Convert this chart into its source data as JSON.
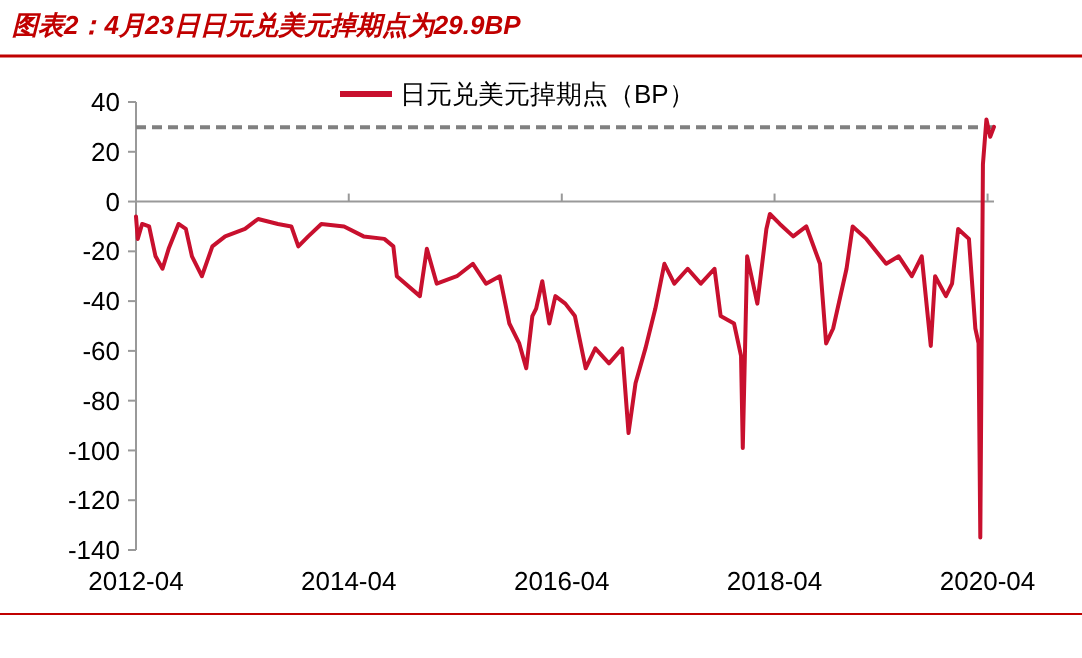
{
  "chart_data": {
    "type": "line",
    "title": "图表2：4月23日日元兑美元掉期点为29.9BP",
    "x": [
      "2012-04-01",
      "2012-04-07",
      "2012-04-22",
      "2012-05-16",
      "2012-06-07",
      "2012-07-01",
      "2012-07-22",
      "2012-08-25",
      "2012-09-19",
      "2012-10-10",
      "2012-11-13",
      "2012-12-19",
      "2013-02-01",
      "2013-04-10",
      "2013-05-25",
      "2013-08-01",
      "2013-09-16",
      "2013-10-10",
      "2013-11-13",
      "2013-12-28",
      "2014-03-16",
      "2014-05-22",
      "2014-08-01",
      "2014-09-01",
      "2014-09-13",
      "2014-12-01",
      "2014-12-25",
      "2015-01-28",
      "2015-04-07",
      "2015-06-01",
      "2015-07-16",
      "2015-09-01",
      "2015-10-04",
      "2015-11-07",
      "2015-12-01",
      "2015-12-22",
      "2016-01-04",
      "2016-01-25",
      "2016-02-18",
      "2016-03-10",
      "2016-04-13",
      "2016-05-16",
      "2016-06-22",
      "2016-07-25",
      "2016-09-10",
      "2016-10-25",
      "2016-11-16",
      "2016-12-10",
      "2017-01-13",
      "2017-02-16",
      "2017-03-19",
      "2017-04-22",
      "2017-06-07",
      "2017-07-22",
      "2017-09-07",
      "2017-09-28",
      "2017-11-13",
      "2017-12-07",
      "2017-12-13",
      "2017-12-28",
      "2018-02-01",
      "2018-03-04",
      "2018-03-16",
      "2018-04-19",
      "2018-06-04",
      "2018-07-19",
      "2018-09-04",
      "2018-09-25",
      "2018-10-19",
      "2018-12-04",
      "2018-12-25",
      "2019-02-10",
      "2019-04-19",
      "2019-06-01",
      "2019-07-16",
      "2019-08-19",
      "2019-09-19",
      "2019-10-04",
      "2019-11-10",
      "2019-12-01",
      "2019-12-22",
      "2020-01-28",
      "2020-02-19",
      "2020-03-01",
      "2020-03-07",
      "2020-03-16",
      "2020-03-28",
      "2020-04-10",
      "2020-04-23"
    ],
    "series": [
      {
        "name": "日元兑美元掉期点（BP）",
        "color": "#c8102e",
        "values": [
          -6,
          -15,
          -9,
          -10,
          -22,
          -27,
          -19,
          -9,
          -11,
          -22,
          -30,
          -18,
          -14,
          -11,
          -7,
          -9,
          -10,
          -18,
          -14,
          -9,
          -10,
          -14,
          -15,
          -18,
          -30,
          -38,
          -19,
          -33,
          -30,
          -25,
          -33,
          -30,
          -49,
          -57,
          -67,
          -46,
          -43,
          -32,
          -49,
          -38,
          -41,
          -46,
          -67,
          -59,
          -65,
          -59,
          -93,
          -73,
          -59,
          -43,
          -25,
          -33,
          -27,
          -33,
          -27,
          -46,
          -49,
          -62,
          -99,
          -22,
          -41,
          -11,
          -5,
          -9,
          -14,
          -10,
          -25,
          -57,
          -51,
          -27,
          -10,
          -15,
          -25,
          -22,
          -30,
          -22,
          -58,
          -30,
          -38,
          -33,
          -11,
          -15,
          -51,
          -57,
          -135,
          15,
          33,
          26,
          30
        ]
      }
    ],
    "xlim": [
      "2012-04-01",
      "2020-04-23"
    ],
    "xticks": [
      {
        "value": "2012-04-01",
        "label": "2012-04"
      },
      {
        "value": "2014-04-01",
        "label": "2014-04"
      },
      {
        "value": "2016-04-01",
        "label": "2016-04"
      },
      {
        "value": "2018-04-01",
        "label": "2018-04"
      },
      {
        "value": "2020-04-01",
        "label": "2020-04"
      }
    ],
    "ylim": [
      -140,
      40
    ],
    "yticks": [
      -140,
      -120,
      -100,
      -80,
      -60,
      -40,
      -20,
      0,
      20,
      40
    ],
    "ref_lines": [
      {
        "axis": "y",
        "value": 29.9,
        "color": "#808080",
        "line_style": "dashed"
      }
    ],
    "legend": "top",
    "marker": "none",
    "line_style": "solid"
  }
}
